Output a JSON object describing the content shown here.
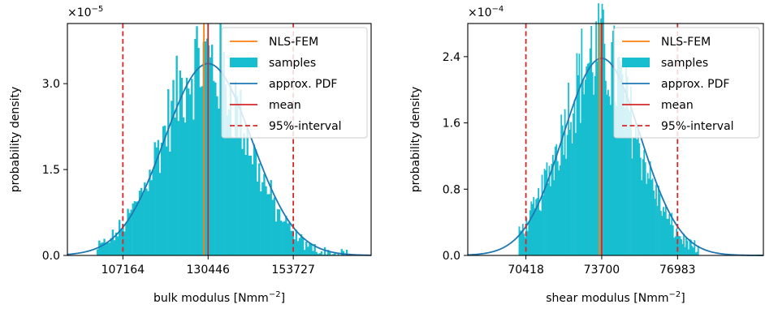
{
  "chart_data": [
    {
      "type": "histogram",
      "xlabel": "bulk modulus [Nmm",
      "xlabel_exponent": "−2",
      "xlabel_close": "]",
      "ylabel": "probability density",
      "y_multiplier_base": "×10",
      "y_multiplier_exponent": "−5",
      "xlim": [
        92000,
        175000
      ],
      "ylim": [
        0,
        4.05
      ],
      "xticks": [
        107164,
        130446,
        153727
      ],
      "xtick_labels": [
        "107164",
        "130446",
        "153727"
      ],
      "yticks": [
        0,
        1.5,
        3.0
      ],
      "ytick_labels": [
        "0.0",
        "1.5",
        "3.0"
      ],
      "nls_fem": 129300,
      "mean": 130446,
      "interval_95": [
        107164,
        153727
      ],
      "hist_range": [
        100000,
        169000
      ],
      "pdf": {
        "mean": 130446,
        "sd": 11880,
        "peak": 3.35
      },
      "legend": {
        "placement": "top-right",
        "entries": [
          {
            "label": "NLS-FEM",
            "kind": "line",
            "color": "#ff7f0e"
          },
          {
            "label": "samples",
            "kind": "patch",
            "color": "#17becf"
          },
          {
            "label": "approx. PDF",
            "kind": "line",
            "color": "#1f77b4"
          },
          {
            "label": "mean",
            "kind": "line",
            "color": "#d62728"
          },
          {
            "label": "95%-interval",
            "kind": "dashed",
            "color": "#d62728"
          }
        ]
      }
    },
    {
      "type": "histogram",
      "xlabel": "shear modulus [Nmm",
      "xlabel_exponent": "−2",
      "xlabel_close": "]",
      "ylabel": "probability density",
      "y_multiplier_base": "×10",
      "y_multiplier_exponent": "−4",
      "xlim": [
        67900,
        80700
      ],
      "ylim": [
        0,
        2.8
      ],
      "xticks": [
        70418,
        73700,
        76983
      ],
      "xtick_labels": [
        "70418",
        "73700",
        "76983"
      ],
      "yticks": [
        0,
        0.8,
        1.6,
        2.4
      ],
      "ytick_labels": [
        "0.0",
        "0.8",
        "1.6",
        "2.4"
      ],
      "nls_fem": 73600,
      "mean": 73700,
      "interval_95": [
        70418,
        76983
      ],
      "hist_range": [
        70100,
        77900
      ],
      "pdf": {
        "mean": 73700,
        "sd": 1675,
        "peak": 2.38
      },
      "legend": {
        "placement": "top-right",
        "entries": [
          {
            "label": "NLS-FEM",
            "kind": "line",
            "color": "#ff7f0e"
          },
          {
            "label": "samples",
            "kind": "patch",
            "color": "#17becf"
          },
          {
            "label": "approx. PDF",
            "kind": "line",
            "color": "#1f77b4"
          },
          {
            "label": "mean",
            "kind": "line",
            "color": "#d62728"
          },
          {
            "label": "95%-interval",
            "kind": "dashed",
            "color": "#d62728"
          }
        ]
      }
    }
  ]
}
